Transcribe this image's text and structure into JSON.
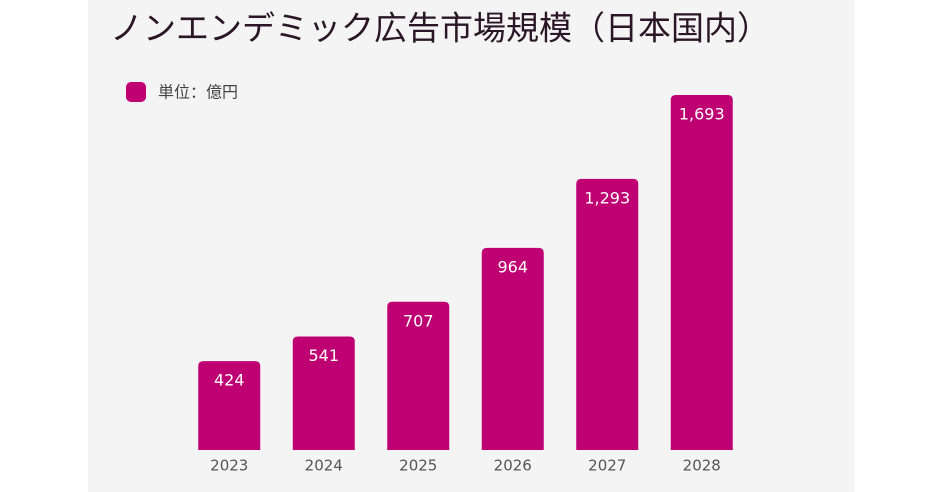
{
  "chart_data": {
    "type": "bar",
    "title": "ノンエンデミック広告市場規模（日本国内）",
    "categories": [
      "2023",
      "2024",
      "2025",
      "2026",
      "2027",
      "2028"
    ],
    "series": [
      {
        "name": "単位：億円",
        "color": "#bf0073",
        "values": [
          424,
          541,
          707,
          964,
          1293,
          1693
        ],
        "value_labels": [
          "424",
          "541",
          "707",
          "964",
          "1,293",
          "1,693"
        ]
      }
    ]
  }
}
